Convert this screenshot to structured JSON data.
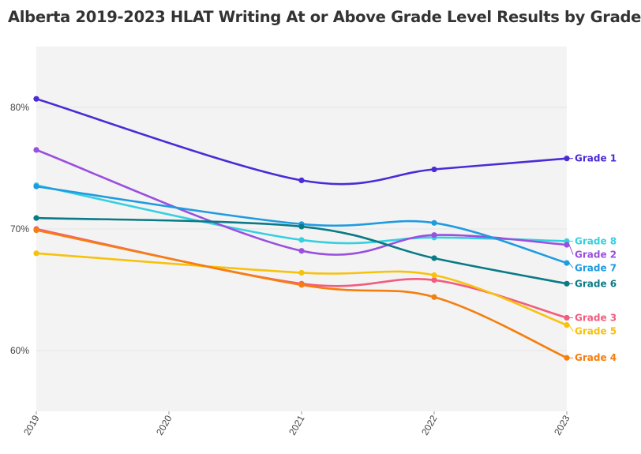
{
  "chart_data": {
    "type": "line",
    "title": "Alberta 2019-2023 HLAT Writing At or Above Grade Level Results by Grade",
    "xlabel": "",
    "ylabel": "",
    "x": [
      "2019",
      "2021",
      "2022",
      "2023"
    ],
    "x_ticks": [
      "2019",
      "2020",
      "2021",
      "2022",
      "2023"
    ],
    "y_ticks": [
      "60%",
      "70%",
      "80%"
    ],
    "y_tick_values": [
      60,
      70,
      80
    ],
    "xlim": [
      2019,
      2023
    ],
    "ylim": [
      55,
      85
    ],
    "grid": true,
    "legend": "labels at line ends (right)",
    "series": [
      {
        "name": "Grade 1",
        "color": "#4b2bd6",
        "values": [
          80.7,
          74.0,
          74.9,
          75.8
        ]
      },
      {
        "name": "Grade 8",
        "color": "#35d0e0",
        "values": [
          73.6,
          69.1,
          69.3,
          69.0
        ]
      },
      {
        "name": "Grade 2",
        "color": "#9a4fde",
        "values": [
          76.5,
          68.2,
          69.5,
          68.7
        ]
      },
      {
        "name": "Grade 7",
        "color": "#1f9be0",
        "values": [
          73.5,
          70.4,
          70.5,
          67.2
        ]
      },
      {
        "name": "Grade 6",
        "color": "#0a7a86",
        "values": [
          70.9,
          70.2,
          67.6,
          65.5
        ]
      },
      {
        "name": "Grade 3",
        "color": "#f25c7e",
        "values": [
          70.0,
          65.5,
          65.8,
          62.7
        ]
      },
      {
        "name": "Grade 5",
        "color": "#f7c20c",
        "values": [
          68.0,
          66.4,
          66.2,
          62.1
        ]
      },
      {
        "name": "Grade 4",
        "color": "#f57e0e",
        "values": [
          69.9,
          65.4,
          64.4,
          59.4
        ]
      }
    ]
  }
}
